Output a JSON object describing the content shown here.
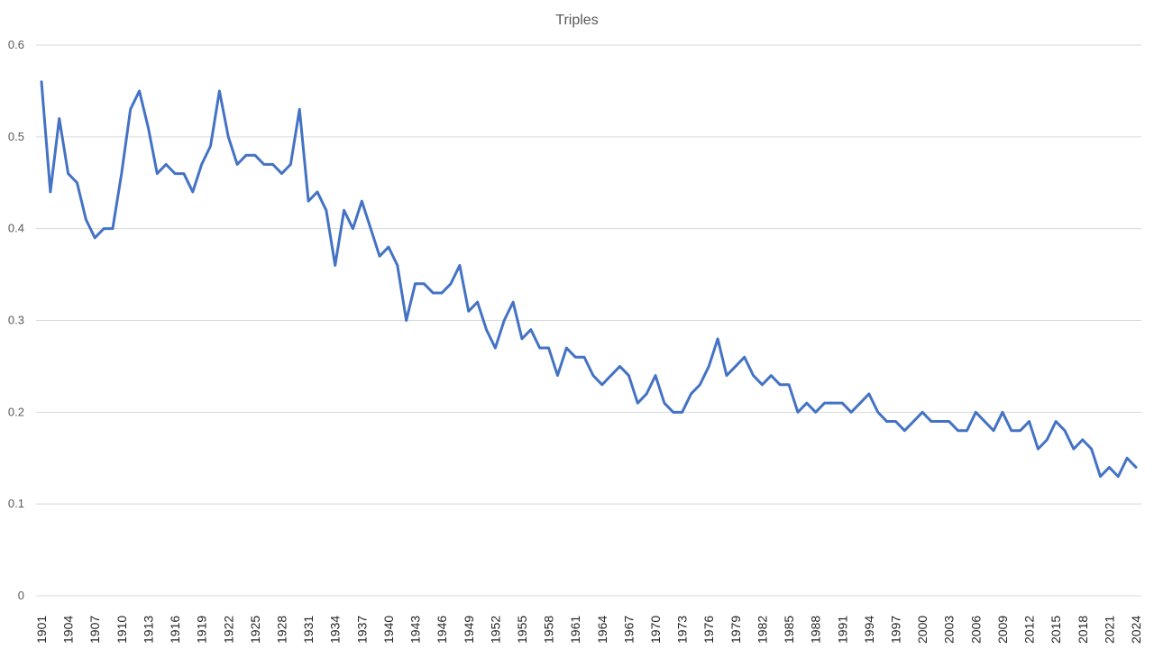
{
  "chart_data": {
    "type": "line",
    "title": "Triples",
    "xlabel": "",
    "ylabel": "",
    "ylim": [
      0,
      0.6
    ],
    "yticks": [
      "0",
      "0.1",
      "0.2",
      "0.3",
      "0.4",
      "0.5",
      "0.6"
    ],
    "xtick_labels": [
      "1901",
      "1904",
      "1907",
      "1910",
      "1913",
      "1916",
      "1919",
      "1922",
      "1925",
      "1928",
      "1931",
      "1934",
      "1937",
      "1940",
      "1943",
      "1946",
      "1949",
      "1952",
      "1955",
      "1958",
      "1961",
      "1964",
      "1967",
      "1970",
      "1973",
      "1976",
      "1979",
      "1982",
      "1985",
      "1988",
      "1991",
      "1994",
      "1997",
      "2000",
      "2003",
      "2006",
      "2009",
      "2012",
      "2015",
      "2018",
      "2021",
      "2024"
    ],
    "grid": true,
    "legend": "none",
    "line_color": "#4472c4",
    "x_start": 1901,
    "x_end": 2024,
    "series": [
      {
        "values": [
          0.56,
          0.44,
          0.52,
          0.46,
          0.45,
          0.41,
          0.39,
          0.4,
          0.4,
          0.46,
          0.53,
          0.55,
          0.51,
          0.46,
          0.47,
          0.46,
          0.46,
          0.44,
          0.47,
          0.49,
          0.55,
          0.5,
          0.47,
          0.48,
          0.48,
          0.47,
          0.47,
          0.46,
          0.47,
          0.53,
          0.43,
          0.44,
          0.42,
          0.36,
          0.42,
          0.4,
          0.43,
          0.4,
          0.37,
          0.38,
          0.36,
          0.3,
          0.34,
          0.34,
          0.33,
          0.33,
          0.34,
          0.36,
          0.31,
          0.32,
          0.29,
          0.27,
          0.3,
          0.32,
          0.28,
          0.29,
          0.27,
          0.27,
          0.24,
          0.27,
          0.26,
          0.26,
          0.24,
          0.23,
          0.24,
          0.25,
          0.24,
          0.21,
          0.22,
          0.24,
          0.21,
          0.2,
          0.2,
          0.22,
          0.23,
          0.25,
          0.28,
          0.24,
          0.25,
          0.26,
          0.24,
          0.23,
          0.24,
          0.23,
          0.23,
          0.2,
          0.21,
          0.2,
          0.21,
          0.21,
          0.21,
          0.2,
          0.21,
          0.22,
          0.2,
          0.19,
          0.19,
          0.18,
          0.19,
          0.2,
          0.19,
          0.19,
          0.19,
          0.18,
          0.18,
          0.2,
          0.19,
          0.18,
          0.2,
          0.18,
          0.18,
          0.19,
          0.16,
          0.17,
          0.19,
          0.18,
          0.16,
          0.17,
          0.16,
          0.13,
          0.14,
          0.13,
          0.15,
          0.14
        ]
      }
    ]
  }
}
